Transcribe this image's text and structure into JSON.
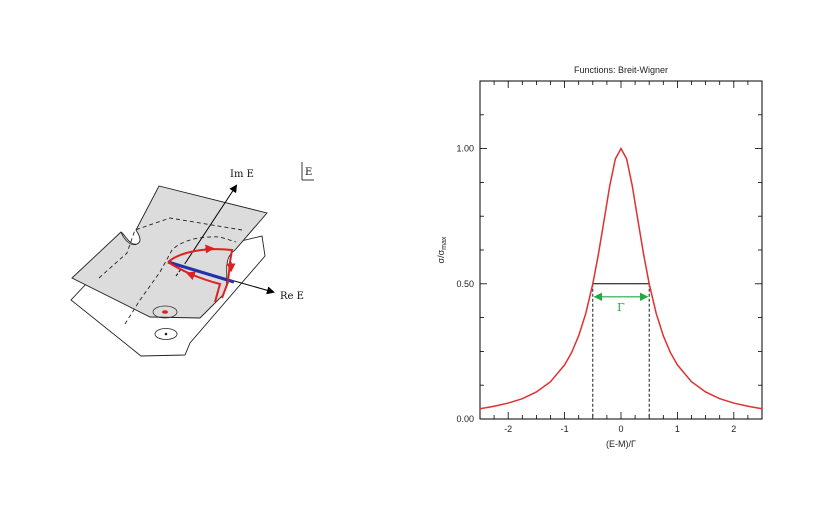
{
  "diagram": {
    "im_axis_label": "Im E",
    "re_axis_label": "Re E",
    "corner_label": "E"
  },
  "chart_data": {
    "type": "line",
    "title": "Functions: Breit-Wigner",
    "xlabel": "(E-M)/Γ",
    "ylabel": "σ/σ",
    "ylabel_subscript": "max",
    "xlim": [
      -2.5,
      2.5
    ],
    "ylim": [
      0,
      1.25
    ],
    "x_ticks": [
      -2,
      -1,
      0,
      1,
      2
    ],
    "x_tick_labels": [
      "-2",
      "-1",
      "0",
      "1",
      "2"
    ],
    "y_ticks": [
      0.0,
      0.5,
      1.0
    ],
    "y_tick_labels": [
      "0.00",
      "0.50",
      "1.00"
    ],
    "grid": false,
    "series": [
      {
        "color": "#e03030",
        "x": [
          -2.5,
          -2.25,
          -2.0,
          -1.75,
          -1.5,
          -1.25,
          -1.0,
          -0.875,
          -0.75,
          -0.625,
          -0.5,
          -0.4,
          -0.3,
          -0.2,
          -0.1,
          0.0,
          0.1,
          0.2,
          0.3,
          0.4,
          0.5,
          0.625,
          0.75,
          0.875,
          1.0,
          1.25,
          1.5,
          1.75,
          2.0,
          2.25,
          2.5
        ],
        "y": [
          0.038,
          0.047,
          0.059,
          0.075,
          0.1,
          0.138,
          0.2,
          0.246,
          0.308,
          0.39,
          0.5,
          0.61,
          0.735,
          0.862,
          0.962,
          1.0,
          0.962,
          0.862,
          0.735,
          0.61,
          0.5,
          0.39,
          0.308,
          0.246,
          0.2,
          0.138,
          0.1,
          0.075,
          0.059,
          0.047,
          0.038
        ]
      }
    ],
    "half_maximum": {
      "y": 0.5,
      "x_left": -0.5,
      "x_right": 0.5
    },
    "annotation": {
      "text": "Γ",
      "color": "#22aa44"
    }
  }
}
